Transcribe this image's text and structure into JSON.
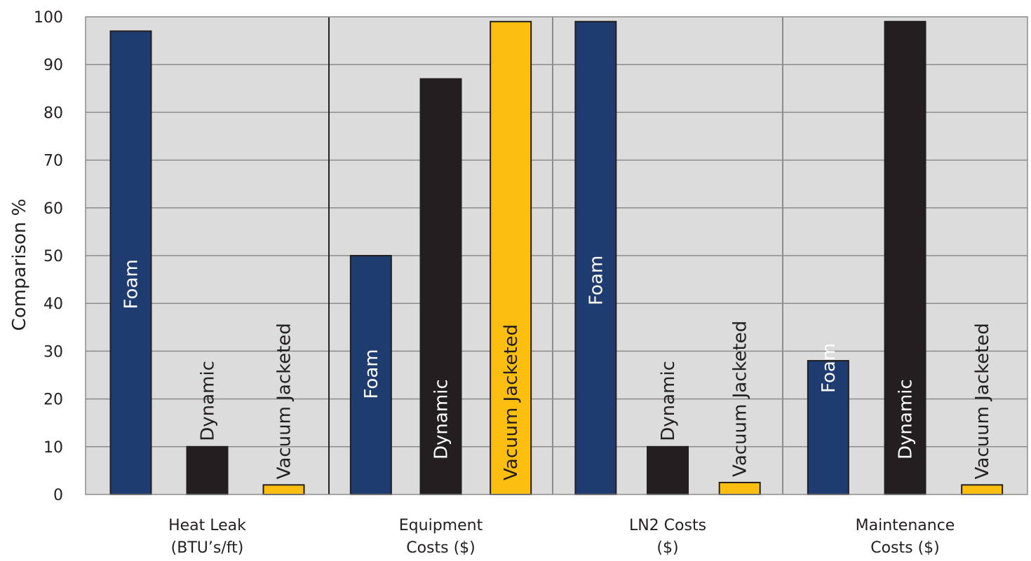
{
  "chart_data": {
    "type": "bar",
    "title": "",
    "xlabel": "",
    "ylabel": "Comparison %",
    "ylim": [
      0,
      100
    ],
    "yticks": [
      0,
      10,
      20,
      30,
      40,
      50,
      60,
      70,
      80,
      90,
      100
    ],
    "grid": true,
    "legend": "none",
    "colors": {
      "Foam": "#1f3c70",
      "Dynamic": "#231f20",
      "Vacuum Jacketed": "#fcbf10",
      "plot_background": "#dcdcdd",
      "grid": "#8c8c8c"
    },
    "categories": [
      {
        "label_lines": [
          "Heat Leak",
          "(BTU’s/ft)"
        ],
        "bars": [
          {
            "series": "Foam",
            "value": 97
          },
          {
            "series": "Dynamic",
            "value": 10
          },
          {
            "series": "Vacuum Jacketed",
            "value": 2
          }
        ]
      },
      {
        "label_lines": [
          "Equipment",
          "Costs ($)"
        ],
        "bars": [
          {
            "series": "Foam",
            "value": 50
          },
          {
            "series": "Dynamic",
            "value": 87
          },
          {
            "series": "Vacuum Jacketed",
            "value": 99
          }
        ]
      },
      {
        "label_lines": [
          "LN2 Costs",
          "($)"
        ],
        "bars": [
          {
            "series": "Foam",
            "value": 99
          },
          {
            "series": "Dynamic",
            "value": 10
          },
          {
            "series": "Vacuum Jacketed",
            "value": 2.5
          }
        ]
      },
      {
        "label_lines": [
          "Maintenance",
          "Costs ($)"
        ],
        "bars": [
          {
            "series": "Foam",
            "value": 28
          },
          {
            "series": "Dynamic",
            "value": 99
          },
          {
            "series": "Vacuum Jacketed",
            "value": 2
          }
        ]
      }
    ]
  }
}
